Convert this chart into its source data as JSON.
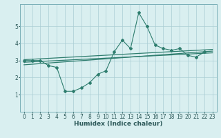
{
  "x_data": [
    0,
    1,
    2,
    3,
    4,
    5,
    6,
    7,
    8,
    9,
    10,
    11,
    12,
    13,
    14,
    15,
    16,
    17,
    18,
    19,
    20,
    21,
    22,
    23
  ],
  "y_data": [
    3.0,
    3.0,
    3.0,
    2.7,
    2.6,
    1.2,
    1.2,
    1.4,
    1.7,
    2.2,
    2.4,
    3.5,
    4.2,
    3.7,
    5.8,
    5.0,
    3.9,
    3.7,
    3.6,
    3.7,
    3.3,
    3.2,
    3.5,
    null
  ],
  "background_color": "#d9eff0",
  "line_color": "#2e7d6e",
  "grid_color": "#aacdd4",
  "xlabel": "Humidex (Indice chaleur)",
  "xlabel_fontsize": 6.5,
  "tick_fontsize": 5.5,
  "ylim": [
    0,
    6.3
  ],
  "xlim": [
    -0.5,
    23.5
  ],
  "yticks": [
    1,
    2,
    3,
    4,
    5
  ],
  "xticks": [
    0,
    1,
    2,
    3,
    4,
    5,
    6,
    7,
    8,
    9,
    10,
    11,
    12,
    13,
    14,
    15,
    16,
    17,
    18,
    19,
    20,
    21,
    22,
    23
  ],
  "trend1_x": [
    0,
    23
  ],
  "trend1_y": [
    2.9,
    3.45
  ],
  "trend2_x": [
    0,
    23
  ],
  "trend2_y": [
    3.05,
    3.65
  ],
  "trend3_x": [
    0,
    23
  ],
  "trend3_y": [
    2.75,
    3.55
  ]
}
